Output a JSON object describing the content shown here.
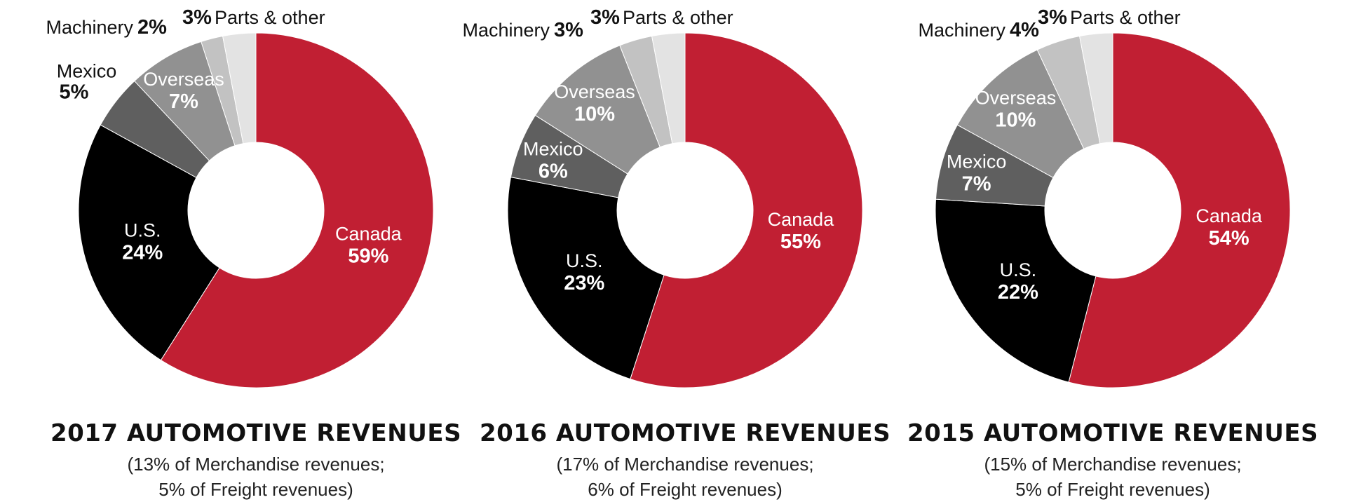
{
  "colors": {
    "Canada": "#c11f33",
    "U.S.": "#000000",
    "Mexico": "#5f5f5f",
    "Overseas": "#919191",
    "Machinery": "#c2c2c2",
    "Parts & other": "#e3e3e3"
  },
  "chart_data": [
    {
      "type": "pie",
      "title": "2017 AUTOMOTIVE REVENUES",
      "subtitle_line1": "(13% of Merchandise revenues;",
      "subtitle_line2": "5% of Freight revenues)",
      "slices": [
        {
          "label": "Canada",
          "value": 59,
          "pct_label": "59%"
        },
        {
          "label": "U.S.",
          "value": 24,
          "pct_label": "24%"
        },
        {
          "label": "Mexico",
          "value": 5,
          "pct_label": "5%"
        },
        {
          "label": "Overseas",
          "value": 7,
          "pct_label": "7%"
        },
        {
          "label": "Machinery",
          "value": 2,
          "pct_label": "2%"
        },
        {
          "label": "Parts & other",
          "value": 3,
          "pct_label": "3%"
        }
      ]
    },
    {
      "type": "pie",
      "title": "2016 AUTOMOTIVE REVENUES",
      "subtitle_line1": "(17% of Merchandise revenues;",
      "subtitle_line2": "6% of Freight revenues)",
      "slices": [
        {
          "label": "Canada",
          "value": 55,
          "pct_label": "55%"
        },
        {
          "label": "U.S.",
          "value": 23,
          "pct_label": "23%"
        },
        {
          "label": "Mexico",
          "value": 6,
          "pct_label": "6%"
        },
        {
          "label": "Overseas",
          "value": 10,
          "pct_label": "10%"
        },
        {
          "label": "Machinery",
          "value": 3,
          "pct_label": "3%"
        },
        {
          "label": "Parts & other",
          "value": 3,
          "pct_label": "3%"
        }
      ]
    },
    {
      "type": "pie",
      "title": "2015 AUTOMOTIVE REVENUES",
      "subtitle_line1": "(15% of Merchandise revenues;",
      "subtitle_line2": "5% of Freight revenues)",
      "slices": [
        {
          "label": "Canada",
          "value": 54,
          "pct_label": "54%"
        },
        {
          "label": "U.S.",
          "value": 22,
          "pct_label": "22%"
        },
        {
          "label": "Mexico",
          "value": 7,
          "pct_label": "7%"
        },
        {
          "label": "Overseas",
          "value": 10,
          "pct_label": "10%"
        },
        {
          "label": "Machinery",
          "value": 4,
          "pct_label": "4%"
        },
        {
          "label": "Parts & other",
          "value": 3,
          "pct_label": "3%"
        }
      ]
    }
  ]
}
